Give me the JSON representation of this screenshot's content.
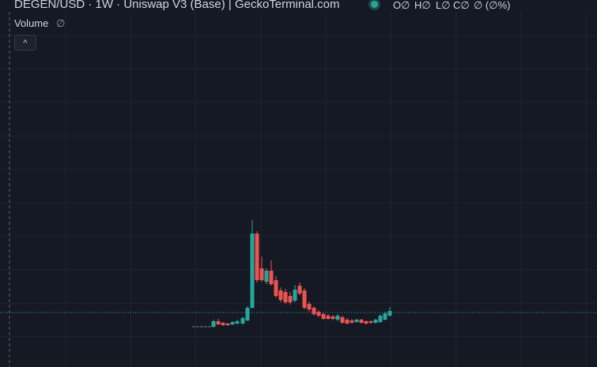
{
  "header": {
    "title": "DEGEN/USD · 1W · Uniswap V3 (Base) | GeckoTerminal.com",
    "legend": {
      "open": "O∅",
      "high": "H∅",
      "low": "L∅",
      "close": "C∅",
      "change": "∅ (∅%)"
    }
  },
  "volume": {
    "label": "Volume",
    "value": "∅"
  },
  "collapse_button": {
    "label": "^"
  }
}
